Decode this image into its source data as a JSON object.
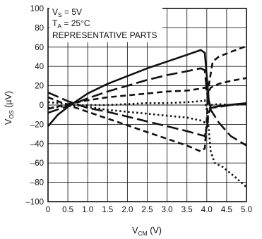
{
  "chart_data": {
    "type": "line",
    "xlabel": {
      "main": "V",
      "sub": "CM",
      "unit": " (V)"
    },
    "ylabel": {
      "main": "V",
      "sub": "OS",
      "unit": " (µV)"
    },
    "xlim": [
      0,
      5
    ],
    "ylim": [
      -100,
      100
    ],
    "xticks": [
      0,
      0.5,
      1,
      1.5,
      2,
      2.5,
      3,
      3.5,
      4,
      4.5,
      5
    ],
    "xtick_labels": [
      "0",
      "0.5",
      "1.0",
      "1.5",
      "2.0",
      "2.5",
      "3.0",
      "3.5",
      "4.0",
      "4.5",
      "5.0"
    ],
    "yticks": [
      -100,
      -80,
      -60,
      -40,
      -20,
      0,
      20,
      40,
      60,
      80,
      100
    ],
    "ytick_labels": [
      "–100",
      "–80",
      "–60",
      "–40",
      "–20",
      "0",
      "20",
      "40",
      "60",
      "80",
      "100"
    ],
    "grid": true,
    "annotations": [
      {
        "main": "V",
        "sub": "S",
        "rest": " = 5V"
      },
      {
        "main": "T",
        "sub": "A",
        "rest": " = 25°C"
      },
      {
        "main": "REPRESENTATIVE PARTS",
        "sub": "",
        "rest": ""
      }
    ],
    "series": [
      {
        "style": "solid",
        "x": [
          0,
          0.25,
          0.5,
          1,
          1.5,
          2,
          2.5,
          3,
          3.5,
          3.85,
          3.95,
          4.0,
          4.05,
          4.1,
          4.2,
          4.5,
          5
        ],
        "y": [
          -22,
          -10,
          -2,
          12,
          22,
          30,
          38,
          45,
          52,
          57,
          54,
          30,
          5,
          -3,
          -2,
          0,
          2
        ]
      },
      {
        "style": "long-dash",
        "x": [
          0,
          0.5,
          1,
          1.5,
          2,
          2.5,
          3,
          3.5,
          3.85,
          3.95,
          4.0,
          4.05,
          4.1,
          4.3,
          4.6,
          5
        ],
        "y": [
          -8,
          -1,
          7,
          14,
          20,
          26,
          31,
          35,
          38,
          36,
          15,
          2,
          -5,
          -18,
          -32,
          -42
        ]
      },
      {
        "style": "dash",
        "x": [
          0,
          0.5,
          1,
          1.5,
          2,
          2.5,
          3,
          3.5,
          3.85,
          3.95,
          4.0,
          4.05,
          4.1,
          4.3,
          4.6,
          5
        ],
        "y": [
          -4,
          1,
          5,
          8,
          10,
          12,
          14,
          15,
          17,
          18,
          16,
          14,
          18,
          22,
          25,
          28
        ]
      },
      {
        "style": "dash",
        "x": [
          0,
          0.5,
          1,
          1.5,
          2,
          2.5,
          3,
          3.5,
          3.85,
          3.95,
          4.0,
          4.05,
          4.15,
          4.3,
          4.6,
          5
        ],
        "y": [
          8,
          0,
          -7,
          -14,
          -21,
          -28,
          -35,
          -42,
          -48,
          -45,
          -15,
          20,
          45,
          50,
          55,
          61
        ]
      },
      {
        "style": "long-dash",
        "x": [
          0,
          0.5,
          1,
          1.5,
          2,
          2.5,
          3,
          3.5,
          3.85,
          3.95,
          4.0,
          4.05,
          4.1,
          4.3,
          4.6,
          5
        ],
        "y": [
          13,
          4,
          -3,
          -7,
          -12,
          -17,
          -22,
          -27,
          -31,
          -32,
          -25,
          -8,
          -3,
          -2,
          0,
          1
        ]
      },
      {
        "style": "dot",
        "x": [
          0,
          0.5,
          1,
          1.5,
          2,
          2.5,
          3,
          3.5,
          3.85,
          3.95,
          4.0,
          4.05,
          4.1,
          4.2,
          4.4,
          4.7,
          5
        ],
        "y": [
          -3,
          -1,
          0,
          0,
          1,
          2,
          2,
          3,
          4,
          5,
          -5,
          -25,
          -48,
          -60,
          -64,
          -74,
          -85
        ]
      },
      {
        "style": "dot",
        "x": [
          0,
          0.5,
          1,
          1.5,
          2,
          2.5,
          3,
          3.5,
          3.85,
          3.95,
          4.0,
          4.05,
          4.1,
          4.3,
          4.6,
          5
        ],
        "y": [
          3,
          1,
          -2,
          -5,
          -7,
          -9,
          -11,
          -13,
          -16,
          -18,
          -17,
          -8,
          0,
          1,
          0,
          1
        ]
      }
    ]
  }
}
